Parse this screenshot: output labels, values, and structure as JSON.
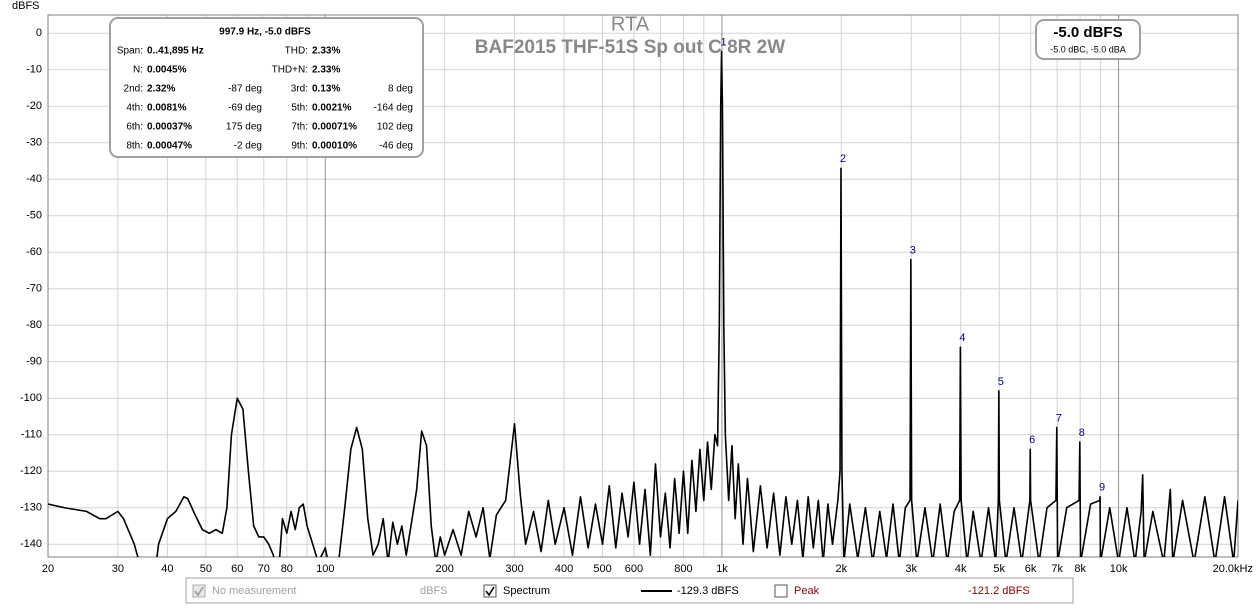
{
  "chart_data": {
    "type": "line",
    "title": "RTA",
    "subtitle": "BAF2015 THF-51S Sp out C 8R 2W",
    "y_label": "dBFS",
    "xlog": true,
    "xlim": [
      20,
      20000
    ],
    "ylim": [
      -143.5,
      5
    ],
    "yticks": [
      0,
      -10,
      -20,
      -30,
      -40,
      -50,
      -60,
      -70,
      -80,
      -90,
      -100,
      -110,
      -120,
      -130,
      -140
    ],
    "xticks": [
      20,
      30,
      40,
      50,
      60,
      70,
      80,
      100,
      200,
      300,
      400,
      500,
      600,
      800,
      {
        "value": 1000,
        "label": "1k"
      },
      {
        "value": 2000,
        "label": "2k"
      },
      {
        "value": 3000,
        "label": "3k"
      },
      {
        "value": 4000,
        "label": "4k"
      },
      {
        "value": 5000,
        "label": "5k"
      },
      {
        "value": 6000,
        "label": "6k"
      },
      {
        "value": 7000,
        "label": "7k"
      },
      {
        "value": 8000,
        "label": "8k"
      },
      {
        "value": 10000,
        "label": "10k"
      },
      {
        "value": 20000,
        "label": "20.0kHz"
      }
    ],
    "xgrid_minor": [
      90,
      700,
      900,
      9000
    ],
    "grid": true,
    "x": [
      20,
      22,
      25,
      27,
      28,
      30,
      31,
      33,
      35,
      37,
      38,
      40,
      42,
      43,
      44,
      45,
      47,
      49,
      51,
      53,
      55,
      56.5,
      58,
      60,
      62,
      64,
      66,
      68,
      70,
      72,
      74,
      76,
      78,
      80,
      82,
      84,
      86,
      88,
      90,
      93,
      96,
      100,
      104,
      108,
      112,
      116,
      120,
      124,
      128,
      132,
      136,
      140,
      144,
      148,
      152,
      156,
      160,
      165,
      170,
      175,
      180,
      185,
      190,
      195,
      200,
      210,
      220,
      230,
      240,
      250,
      260,
      270,
      285,
      300,
      310,
      320,
      335,
      350,
      365,
      380,
      400,
      420,
      440,
      460,
      480,
      500,
      520,
      540,
      560,
      580,
      600,
      620,
      640,
      660,
      680,
      700,
      720,
      740,
      760,
      780,
      800,
      820,
      840,
      860,
      880,
      900,
      920,
      940,
      960,
      975,
      985,
      993,
      998,
      1003,
      1011,
      1020,
      1040,
      1060,
      1080,
      1100,
      1130,
      1160,
      1200,
      1250,
      1300,
      1350,
      1400,
      1450,
      1500,
      1550,
      1600,
      1650,
      1700,
      1750,
      1800,
      1850,
      1900,
      1960,
      1985,
      1996,
      2007,
      2030,
      2100,
      2200,
      2300,
      2400,
      2500,
      2600,
      2700,
      2800,
      2900,
      2980,
      2994,
      3008,
      3100,
      3250,
      3400,
      3550,
      3700,
      3850,
      3975,
      3992,
      4010,
      4150,
      4300,
      4500,
      4700,
      4900,
      4975,
      4990,
      5005,
      5200,
      5450,
      5700,
      5975,
      5988,
      6000,
      6300,
      6600,
      6950,
      6986,
      7020,
      7400,
      7950,
      7984,
      8020,
      8500,
      8960,
      8980,
      9000,
      9500,
      10000,
      10500,
      11000,
      11400,
      11500,
      11600,
      12200,
      13000,
      13500,
      13700,
      14500,
      15500,
      16500,
      17500,
      18500,
      19500,
      20000
    ],
    "series": [
      {
        "name": "Spectrum",
        "color": "#000000",
        "values": [
          -129,
          -130,
          -131,
          -133,
          -133,
          -131,
          -133,
          -140,
          -150,
          -150,
          -140,
          -133,
          -131,
          -129,
          -127,
          -127.5,
          -132,
          -136,
          -137,
          -136,
          -137,
          -130,
          -110,
          -100,
          -103,
          -120,
          -135,
          -138,
          -138,
          -140,
          -143,
          -150,
          -133,
          -137,
          -131,
          -136,
          -130,
          -129,
          -135,
          -140,
          -145,
          -141,
          -150,
          -145,
          -130,
          -114,
          -108,
          -114,
          -133,
          -143,
          -140,
          -133,
          -145,
          -134,
          -140,
          -135,
          -143,
          -134,
          -125,
          -109,
          -113,
          -135,
          -145,
          -138,
          -143,
          -136,
          -143,
          -131,
          -138,
          -130,
          -144,
          -132,
          -128,
          -107,
          -126,
          -140,
          -131,
          -142,
          -128,
          -140,
          -130,
          -143,
          -127,
          -141,
          -129,
          -140,
          -124,
          -141,
          -126,
          -138,
          -123,
          -140,
          -125,
          -143,
          -118,
          -138,
          -126,
          -141,
          -122,
          -137,
          -120,
          -137,
          -117,
          -131,
          -114,
          -128,
          -112,
          -125,
          -110,
          -113,
          -80,
          -20,
          -5,
          -20,
          -80,
          -110,
          -128,
          -113,
          -133,
          -118,
          -140,
          -122,
          -142,
          -124,
          -141,
          -126,
          -143,
          -127,
          -140,
          -128,
          -144,
          -127,
          -141,
          -128,
          -145,
          -129,
          -140,
          -128,
          -120,
          -37,
          -120,
          -145,
          -129,
          -144,
          -130,
          -145,
          -131,
          -144,
          -129,
          -145,
          -130,
          -128,
          -62,
          -128,
          -145,
          -130,
          -145,
          -129,
          -145,
          -131,
          -128,
          -86,
          -128,
          -145,
          -131,
          -145,
          -130,
          -145,
          -128,
          -98,
          -128,
          -145,
          -130,
          -145,
          -128,
          -114,
          -128,
          -145,
          -130,
          -128,
          -108,
          -145,
          -130,
          -128,
          -112,
          -145,
          -129,
          -128,
          -127,
          -145,
          -130,
          -145,
          -130,
          -145,
          -131,
          -121,
          -145,
          -131,
          -145,
          -125,
          -145,
          -128,
          -145,
          -127,
          -145,
          -127,
          -145,
          -128
        ],
        "readout": "-129.3 dBFS",
        "checked": true
      }
    ],
    "harmonics": {
      "labels": [
        "1",
        "2",
        "3",
        "4",
        "5",
        "6",
        "7",
        "8",
        "9"
      ],
      "x": [
        998,
        1996,
        2994,
        3992,
        4990,
        5988,
        6986,
        7984,
        8980
      ],
      "values": [
        -5,
        -37,
        -62,
        -86,
        -98,
        -114,
        -108,
        -112,
        -127
      ],
      "color": "#00008b"
    },
    "info_panel": {
      "header": "997.9 Hz, -5.0 dBFS",
      "rows": [
        [
          {
            "label": "Span:",
            "value": "0..41,895 Hz"
          },
          {
            "label": "THD:",
            "value": "2.33%"
          }
        ],
        [
          {
            "label": "N:",
            "value": "0.0045%"
          },
          {
            "label": "THD+N:",
            "value": "2.33%"
          }
        ],
        [
          {
            "label": "2nd:",
            "value": "2.32%",
            "phase": "-87 deg"
          },
          {
            "label": "3rd:",
            "value": "0.13%",
            "phase": "8 deg"
          }
        ],
        [
          {
            "label": "4th:",
            "value": "0.0081%",
            "phase": "-69 deg"
          },
          {
            "label": "5th:",
            "value": "0.0021%",
            "phase": "-164 deg"
          }
        ],
        [
          {
            "label": "6th:",
            "value": "0.00037%",
            "phase": "175 deg"
          },
          {
            "label": "7th:",
            "value": "0.00071%",
            "phase": "102 deg"
          }
        ],
        [
          {
            "label": "8th:",
            "value": "0.00047%",
            "phase": "-2 deg"
          },
          {
            "label": "9th:",
            "value": "0.00010%",
            "phase": "-46 deg"
          }
        ]
      ]
    },
    "level_box": {
      "main": "-5.0 dBFS",
      "sub": "-5.0 dBC, -5.0 dBA"
    },
    "measurement": {
      "label": "No measurement",
      "unit": "dBFS",
      "checked": true,
      "enabled": false
    },
    "peak": {
      "name": "Peak",
      "readout": "-121.2 dBFS",
      "color": "#8b0000",
      "checked": false
    }
  }
}
